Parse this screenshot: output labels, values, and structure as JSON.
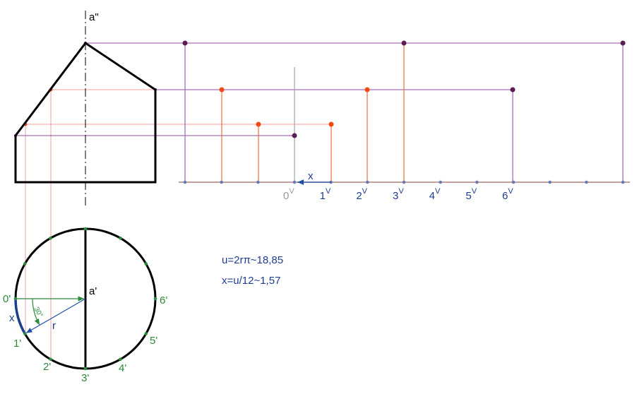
{
  "front_view": {
    "axis_label": "a\""
  },
  "top_view": {
    "center_label": "a'",
    "points": [
      "0'",
      "1'",
      "2'",
      "3'",
      "4'",
      "5'",
      "6'"
    ],
    "radius_label": "r",
    "arc_label": "x",
    "angle_label": "30°"
  },
  "formulas": [
    "u=2rπ~18,85",
    "x=u/12~1,57"
  ],
  "development": {
    "step_label": "x",
    "ticks": [
      {
        "base": "0",
        "sup": "V"
      },
      {
        "base": "1",
        "sup": "V"
      },
      {
        "base": "2",
        "sup": "V"
      },
      {
        "base": "3",
        "sup": "V"
      },
      {
        "base": "4",
        "sup": "V"
      },
      {
        "base": "5",
        "sup": "V"
      },
      {
        "base": "6",
        "sup": "V"
      }
    ]
  }
}
